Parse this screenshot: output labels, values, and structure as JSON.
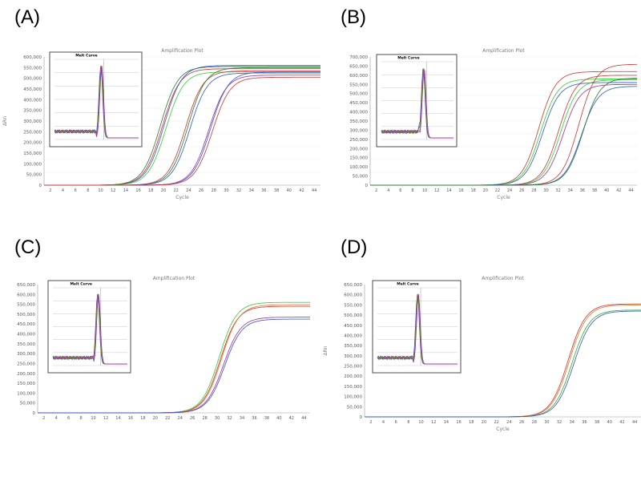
{
  "panels": [
    {
      "label": "(A)",
      "title": "Amplification Plot",
      "xlabel": "Cycle",
      "ylabel": "ΔRn",
      "inset_title": "Melt Curve",
      "ylim": [
        0,
        600000
      ],
      "y_ticks": [
        "0",
        "50,000",
        "100,000",
        "150,000",
        "200,000",
        "250,000",
        "300,000",
        "350,000",
        "400,000",
        "450,000",
        "500,000",
        "550,000",
        "600,000"
      ],
      "x_ticks": [
        "2",
        "4",
        "6",
        "8",
        "10",
        "12",
        "14",
        "16",
        "18",
        "20",
        "22",
        "24",
        "26",
        "28",
        "30",
        "32",
        "34",
        "36",
        "38",
        "40",
        "42",
        "44"
      ],
      "melt_peak_x": 0.55
    },
    {
      "label": "(B)",
      "title": "Amplification Plot",
      "xlabel": "Cycle",
      "ylabel": "",
      "inset_title": "Melt Curve",
      "ylim": [
        0,
        700000
      ],
      "y_ticks": [
        "0",
        "50,000",
        "100,000",
        "150,000",
        "200,000",
        "250,000",
        "300,000",
        "350,000",
        "400,000",
        "450,000",
        "500,000",
        "550,000",
        "600,000",
        "650,000",
        "700,000"
      ],
      "x_ticks": [
        "2",
        "4",
        "6",
        "8",
        "10",
        "12",
        "14",
        "16",
        "18",
        "20",
        "22",
        "24",
        "26",
        "28",
        "30",
        "32",
        "34",
        "36",
        "38",
        "40",
        "42",
        "44"
      ],
      "melt_peak_x": 0.58
    },
    {
      "label": "(C)",
      "title": "Amplification Plot",
      "xlabel": "",
      "ylabel": "ΔRn",
      "inset_title": "Melt Curve",
      "ylim": [
        0,
        650000
      ],
      "y_ticks": [
        "0",
        "50,000",
        "100,000",
        "150,000",
        "200,000",
        "250,000",
        "300,000",
        "350,000",
        "400,000",
        "450,000",
        "500,000",
        "550,000",
        "600,000",
        "650,000"
      ],
      "x_ticks": [
        "2",
        "4",
        "6",
        "8",
        "10",
        "12",
        "14",
        "16",
        "18",
        "20",
        "22",
        "24",
        "26",
        "28",
        "30",
        "32",
        "34",
        "36",
        "38",
        "40",
        "42",
        "44"
      ],
      "melt_peak_x": 0.6
    },
    {
      "label": "(D)",
      "title": "Amplification Plot",
      "xlabel": "Cycle",
      "ylabel": "ΔRn",
      "inset_title": "Melt Curve",
      "ylim": [
        0,
        650000
      ],
      "y_ticks": [
        "0",
        "50,000",
        "100,000",
        "150,000",
        "200,000",
        "250,000",
        "300,000",
        "350,000",
        "400,000",
        "450,000",
        "500,000",
        "550,000",
        "600,000",
        "650,000"
      ],
      "x_ticks": [
        "2",
        "4",
        "6",
        "8",
        "10",
        "12",
        "14",
        "16",
        "18",
        "20",
        "22",
        "24",
        "26",
        "28",
        "30",
        "32",
        "34",
        "36",
        "38",
        "40",
        "42",
        "44"
      ],
      "melt_peak_x": 0.5
    }
  ],
  "chart_data": [
    {
      "type": "line",
      "title": "Amplification Plot",
      "xlabel": "Cycle",
      "ylabel": "ΔRn",
      "xlim": [
        1,
        45
      ],
      "ylim": [
        0,
        600000
      ],
      "grid": true,
      "curve_model": "sigmoid",
      "series": [
        {
          "color": "#2a7a2a",
          "ct": 19.5,
          "plateau": 555000
        },
        {
          "color": "#cc3333",
          "ct": 19.8,
          "plateau": 545000
        },
        {
          "color": "#3355cc",
          "ct": 20.1,
          "plateau": 560000
        },
        {
          "color": "#33cc33",
          "ct": 20.4,
          "plateau": 530000
        },
        {
          "color": "#cc3333",
          "ct": 23.5,
          "plateau": 535000
        },
        {
          "color": "#2a7a2a",
          "ct": 23.9,
          "plateau": 550000
        },
        {
          "color": "#3355cc",
          "ct": 24.2,
          "plateau": 525000
        },
        {
          "color": "#993399",
          "ct": 27.2,
          "plateau": 515000
        },
        {
          "color": "#3355cc",
          "ct": 27.5,
          "plateau": 530000
        },
        {
          "color": "#cc3333",
          "ct": 27.8,
          "plateau": 505000
        }
      ]
    },
    {
      "type": "line",
      "title": "Amplification Plot",
      "xlabel": "Cycle",
      "ylabel": "",
      "xlim": [
        1,
        45
      ],
      "ylim": [
        0,
        700000
      ],
      "grid": true,
      "curve_model": "sigmoid",
      "series": [
        {
          "color": "#cc3333",
          "ct": 28.8,
          "plateau": 620000
        },
        {
          "color": "#33cc33",
          "ct": 29.1,
          "plateau": 580000
        },
        {
          "color": "#3355cc",
          "ct": 29.4,
          "plateau": 560000
        },
        {
          "color": "#cc3333",
          "ct": 32.1,
          "plateau": 600000
        },
        {
          "color": "#33cc33",
          "ct": 32.4,
          "plateau": 575000
        },
        {
          "color": "#993399",
          "ct": 32.8,
          "plateau": 550000
        },
        {
          "color": "#cc3333",
          "ct": 35.4,
          "plateau": 660000
        },
        {
          "color": "#3355cc",
          "ct": 35.8,
          "plateau": 540000
        },
        {
          "color": "#2a7a2a",
          "ct": 36.1,
          "plateau": 585000
        }
      ]
    },
    {
      "type": "line",
      "title": "Amplification Plot",
      "xlabel": "",
      "ylabel": "ΔRn",
      "xlim": [
        1,
        45
      ],
      "ylim": [
        0,
        650000
      ],
      "grid": false,
      "curve_model": "sigmoid",
      "series": [
        {
          "color": "#33cc33",
          "ct": 30.3,
          "plateau": 560000
        },
        {
          "color": "#cc3333",
          "ct": 30.5,
          "plateau": 540000
        },
        {
          "color": "#e07a30",
          "ct": 30.7,
          "plateau": 548000
        },
        {
          "color": "#993399",
          "ct": 31.0,
          "plateau": 485000
        },
        {
          "color": "#3355cc",
          "ct": 31.2,
          "plateau": 475000
        }
      ]
    },
    {
      "type": "line",
      "title": "Amplification Plot",
      "xlabel": "Cycle",
      "ylabel": "ΔRn",
      "xlim": [
        1,
        45
      ],
      "ylim": [
        0,
        650000
      ],
      "grid": false,
      "curve_model": "sigmoid",
      "series": [
        {
          "color": "#cc3333",
          "ct": 33.4,
          "plateau": 555000
        },
        {
          "color": "#e07a30",
          "ct": 33.6,
          "plateau": 550000
        },
        {
          "color": "#33aa33",
          "ct": 34.0,
          "plateau": 525000
        },
        {
          "color": "#3355cc",
          "ct": 34.3,
          "plateau": 520000
        }
      ]
    }
  ]
}
